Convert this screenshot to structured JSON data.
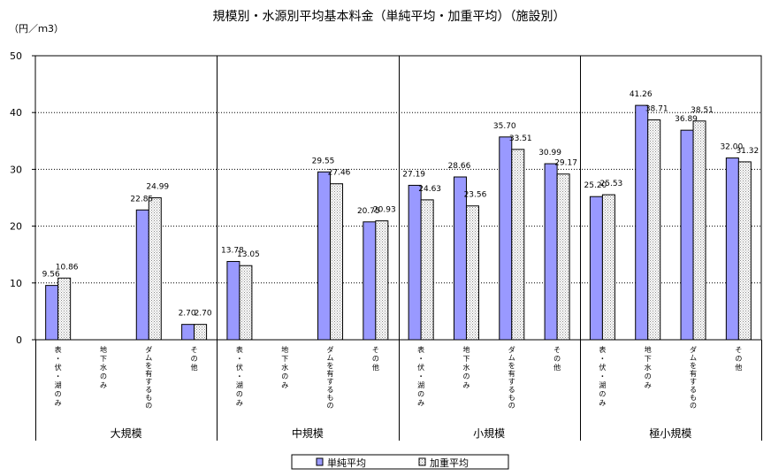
{
  "chart_data": {
    "type": "bar",
    "title": "規模別・水源別平均基本料金（単純平均・加重平均）（施設別）",
    "ylabel": "（円／ｍ3）",
    "ylim": [
      0,
      50
    ],
    "yticks": [
      "0",
      "10",
      "20",
      "30",
      "40",
      "50"
    ],
    "grid": true,
    "legend_position": "bottom-center",
    "groups": [
      {
        "label": "大規模",
        "categories": [
          "表流・伏流・湖沼のみ",
          "地下水のみ",
          "ダムを有するもの",
          "その他"
        ]
      },
      {
        "label": "中規模",
        "categories": [
          "表流・伏流・湖沼のみ",
          "地下水のみ",
          "ダムを有するもの",
          "その他"
        ]
      },
      {
        "label": "小規模",
        "categories": [
          "表流・伏流・湖沼のみ",
          "地下水のみ",
          "ダムを有するもの",
          "その他"
        ]
      },
      {
        "label": "極小規模",
        "categories": [
          "表流・伏流・湖沼のみ",
          "地下水のみ",
          "ダムを有するもの",
          "その他"
        ]
      }
    ],
    "category_display": [
      "表\n・\n伏\n・\n湖\nの\nみ",
      "地\n下\n水\nの\nみ",
      "ダ\nム\nを\n有\nす\nる\nも\nの",
      "そ\nの\n他"
    ],
    "series": [
      {
        "name": "単純平均",
        "color": "#9999ff",
        "values": [
          9.56,
          null,
          22.85,
          2.7,
          13.78,
          null,
          29.55,
          20.75,
          27.19,
          28.66,
          35.7,
          30.99,
          25.2,
          41.26,
          36.89,
          32.0
        ],
        "labels": [
          "9.56",
          "",
          "22.85",
          "2.70",
          "13.78",
          "",
          "29.55",
          "20.75",
          "27.19",
          "28.66",
          "35.70",
          "30.99",
          "25.20",
          "41.26",
          "36.89",
          "32.00"
        ]
      },
      {
        "name": "加重平均",
        "color": "#d8d8d8",
        "values": [
          10.86,
          null,
          24.99,
          2.7,
          13.05,
          null,
          27.46,
          20.93,
          24.63,
          23.56,
          33.51,
          29.17,
          25.53,
          38.71,
          38.51,
          31.32
        ],
        "labels": [
          "10.86",
          "",
          "24.99",
          "2.70",
          "13.05",
          "",
          "27.46",
          "20.93",
          "24.63",
          "23.56",
          "33.51",
          "29.17",
          "25.53",
          "38.71",
          "38.51",
          "31.32"
        ]
      }
    ]
  }
}
